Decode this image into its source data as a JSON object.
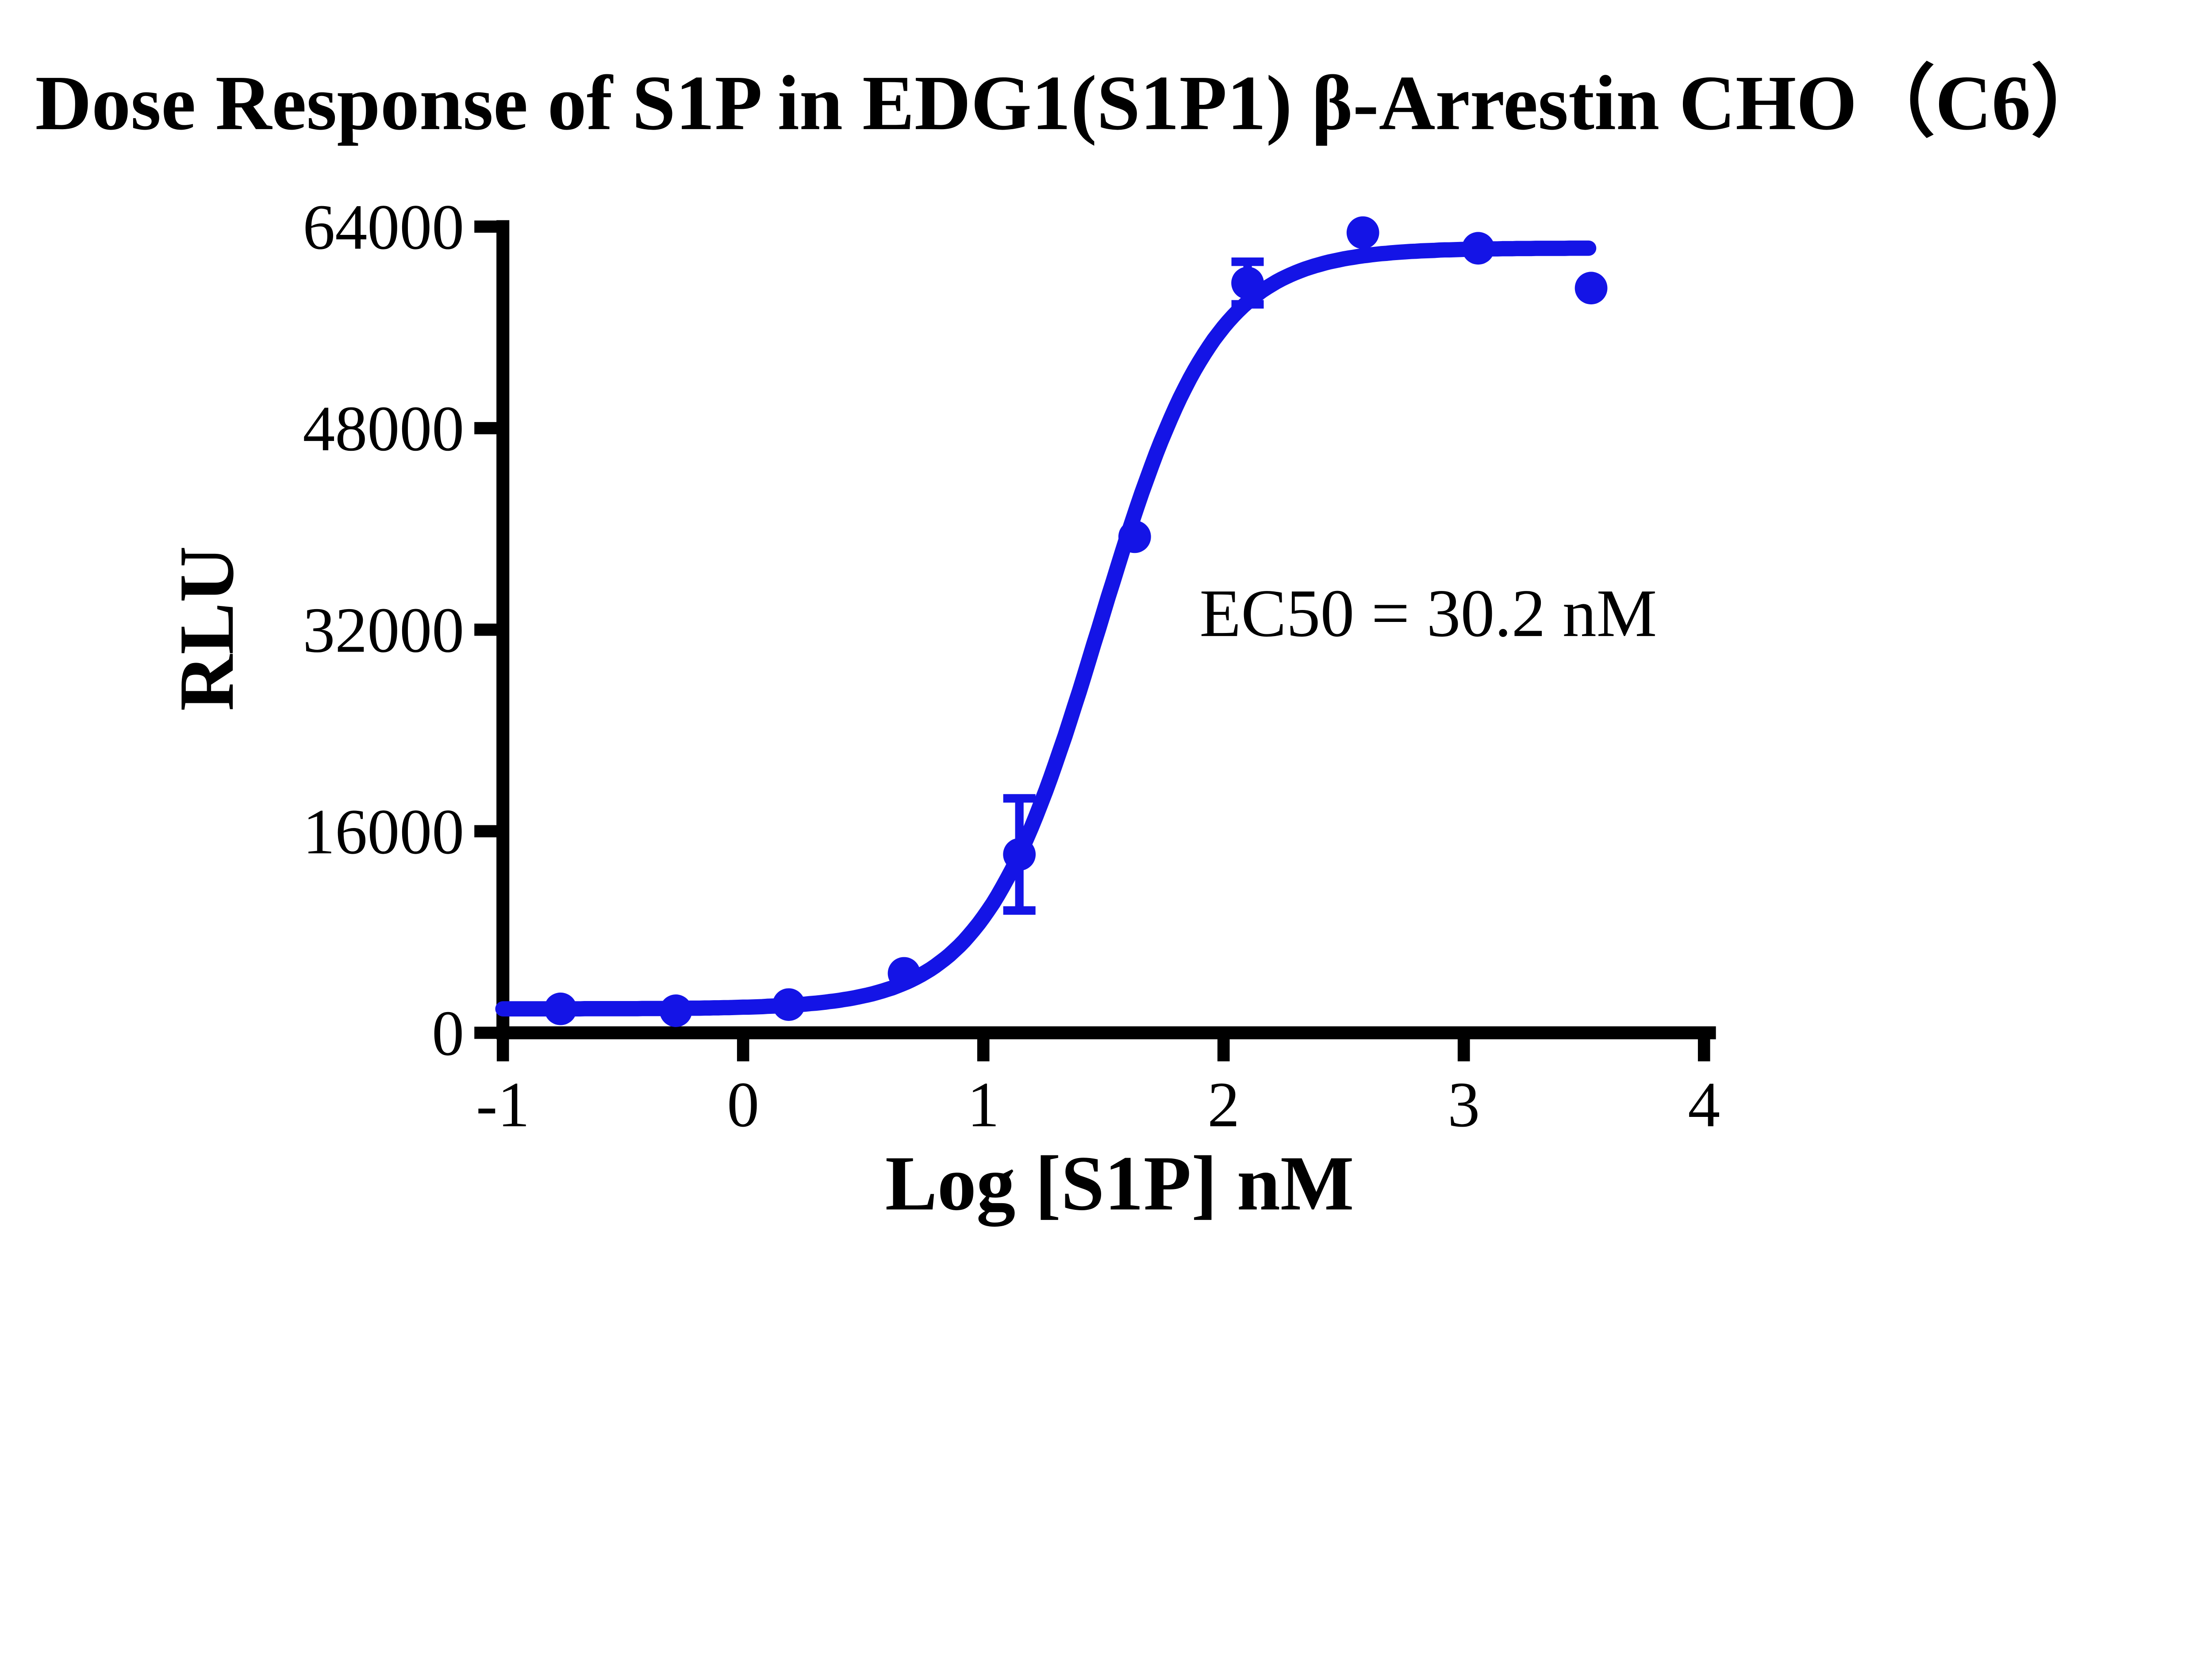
{
  "title": "Dose Response of S1P in EDG1(S1P1) β-Arrestin CHO（C6）",
  "colors": {
    "curve": "#1414e6",
    "axis": "#000000",
    "text": "#000000",
    "background": "#ffffff"
  },
  "chart_data": {
    "type": "scatter",
    "title": "Dose Response of S1P in EDG1(S1P1) β-Arrestin CHO（C6）",
    "xlabel": "Log [S1P] nM",
    "ylabel": "RLU",
    "xlim": [
      -1,
      4
    ],
    "ylim": [
      0,
      64000
    ],
    "x_ticks": [
      -1,
      0,
      1,
      2,
      3,
      4
    ],
    "y_ticks": [
      0,
      16000,
      32000,
      48000,
      64000
    ],
    "grid": false,
    "legend": "none",
    "series": [
      {
        "name": "S1P",
        "color": "#1414e6",
        "marker": "circle",
        "points": [
          {
            "x": -0.76,
            "y": 1900
          },
          {
            "x": -0.28,
            "y": 1750
          },
          {
            "x": 0.19,
            "y": 2240
          },
          {
            "x": 0.67,
            "y": 4720
          },
          {
            "x": 1.15,
            "y": 14160,
            "error": 4450
          },
          {
            "x": 1.63,
            "y": 39380
          },
          {
            "x": 2.1,
            "y": 59520,
            "error": 1690
          },
          {
            "x": 2.58,
            "y": 63520
          },
          {
            "x": 3.06,
            "y": 62280
          },
          {
            "x": 3.53,
            "y": 59120
          }
        ]
      }
    ],
    "fit_curve": {
      "model": "four_parameter_logistic",
      "bottom": 1900,
      "top": 62300,
      "log_ec50": 1.48,
      "hill_slope": 1.8,
      "x_start": -1,
      "x_end": 3.53
    },
    "annotation": {
      "text": "EC50 = 30.2 nM",
      "x": 1.9,
      "y": 31500
    },
    "ec50_nM": 30.2
  }
}
